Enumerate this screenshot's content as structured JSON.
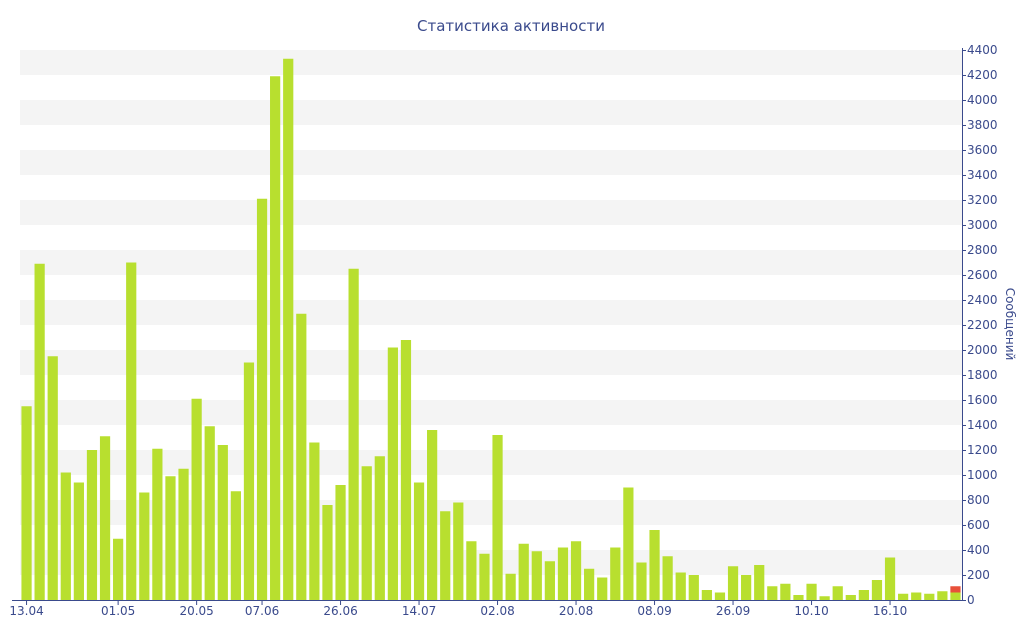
{
  "chart_data": {
    "type": "bar",
    "title": "Статистика активности",
    "ylabel": "Сообщений",
    "xlabel": "",
    "ylim": [
      0,
      4400
    ],
    "y_ticks": [
      0,
      200,
      400,
      600,
      800,
      1000,
      1200,
      1400,
      1600,
      1800,
      2000,
      2200,
      2400,
      2600,
      2800,
      3000,
      3200,
      3400,
      3600,
      3800,
      4000,
      4200,
      4400
    ],
    "y_axis_position": "right",
    "grid": "alternating horizontal bands",
    "legend": "none",
    "x_tick_labels": [
      {
        "label": "13.04",
        "bar_index": 0
      },
      {
        "label": "01.05",
        "bar_index": 7
      },
      {
        "label": "20.05",
        "bar_index": 13
      },
      {
        "label": "07.06",
        "bar_index": 18
      },
      {
        "label": "26.06",
        "bar_index": 24
      },
      {
        "label": "14.07",
        "bar_index": 30
      },
      {
        "label": "02.08",
        "bar_index": 36
      },
      {
        "label": "20.08",
        "bar_index": 42
      },
      {
        "label": "08.09",
        "bar_index": 48
      },
      {
        "label": "26.09",
        "bar_index": 54
      },
      {
        "label": "10.10",
        "bar_index": 60
      },
      {
        "label": "16.10",
        "bar_index": 66
      }
    ],
    "series": [
      {
        "values": [
          1550,
          2690,
          1950,
          1020,
          940,
          1200,
          1310,
          490,
          2700,
          860,
          1210,
          990,
          1050,
          1610,
          1390,
          1240,
          870,
          1900,
          3210,
          4190,
          4330,
          2290,
          1260,
          760,
          920,
          2650,
          1070,
          1150,
          2020,
          2080,
          940,
          1360,
          710,
          780,
          470,
          370,
          1320,
          210,
          450,
          390,
          310,
          420,
          470,
          250,
          180,
          420,
          900,
          300,
          560,
          350,
          220,
          200,
          80,
          60,
          270,
          200,
          280,
          110,
          130,
          40,
          130,
          30,
          110,
          40,
          80,
          160,
          340,
          50,
          60,
          50,
          70,
          60
        ],
        "color": "#b8df2f"
      },
      {
        "values": [
          0,
          0,
          0,
          0,
          0,
          0,
          0,
          0,
          0,
          0,
          0,
          0,
          0,
          0,
          0,
          0,
          0,
          0,
          0,
          0,
          0,
          0,
          0,
          0,
          0,
          0,
          0,
          0,
          0,
          0,
          0,
          0,
          0,
          0,
          0,
          0,
          0,
          0,
          0,
          0,
          0,
          0,
          0,
          0,
          0,
          0,
          0,
          0,
          0,
          0,
          0,
          0,
          0,
          0,
          0,
          0,
          0,
          0,
          0,
          0,
          0,
          0,
          0,
          0,
          0,
          0,
          0,
          0,
          0,
          0,
          0,
          50
        ],
        "color": "#e8503a"
      }
    ]
  },
  "colors": {
    "axis_text": "#3a4a8c",
    "band": "#f4f4f4"
  }
}
